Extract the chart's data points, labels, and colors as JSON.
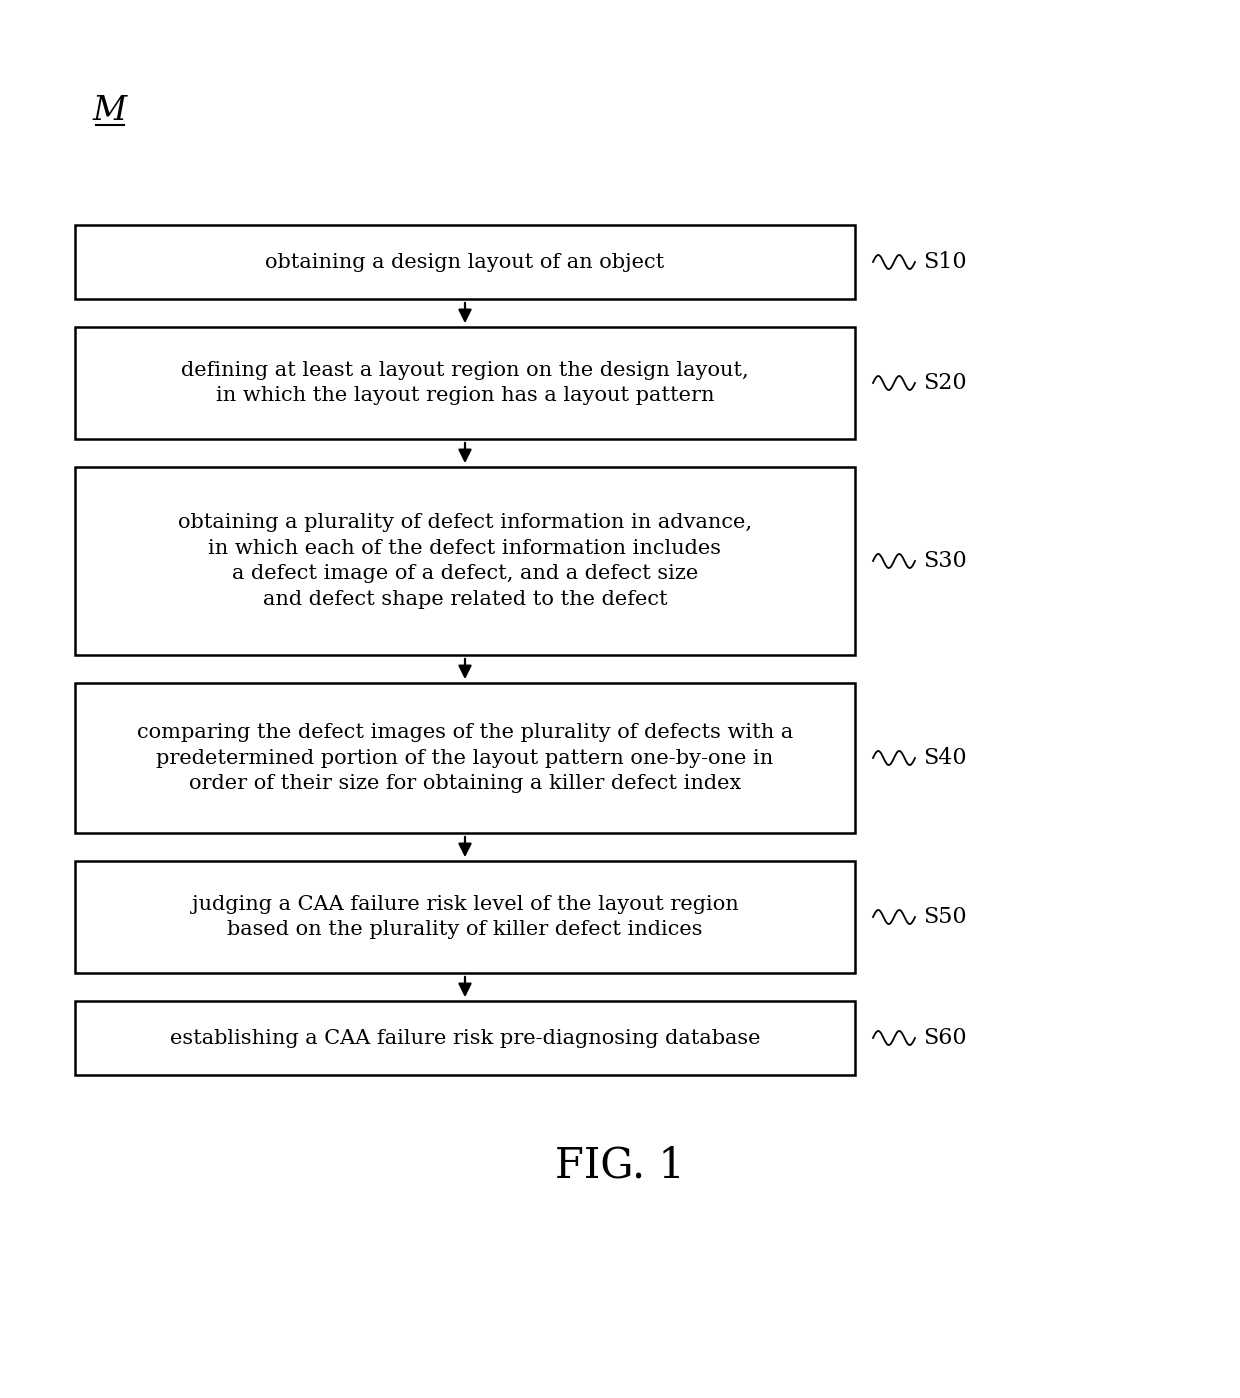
{
  "title": "FIG. 1",
  "label_M": "M",
  "background_color": "#ffffff",
  "box_fill": "#ffffff",
  "box_edge": "#000000",
  "text_color": "#000000",
  "arrow_color": "#000000",
  "steps": [
    {
      "id": "S10",
      "label": "S10",
      "text": "obtaining a design layout of an object",
      "lines": 1
    },
    {
      "id": "S20",
      "label": "S20",
      "text": "defining at least a layout region on the design layout,\nin which the layout region has a layout pattern",
      "lines": 2
    },
    {
      "id": "S30",
      "label": "S30",
      "text": "obtaining a plurality of defect information in advance,\nin which each of the defect information includes\na defect image of a defect, and a defect size\nand defect shape related to the defect",
      "lines": 4
    },
    {
      "id": "S40",
      "label": "S40",
      "text": "comparing the defect images of the plurality of defects with a\npredetermined portion of the layout pattern one-by-one in\norder of their size for obtaining a killer defect index",
      "lines": 3
    },
    {
      "id": "S50",
      "label": "S50",
      "text": "judging a CAA failure risk level of the layout region\nbased on the plurality of killer defect indices",
      "lines": 2
    },
    {
      "id": "S60",
      "label": "S60",
      "text": "establishing a CAA failure risk pre-diagnosing database",
      "lines": 1
    }
  ],
  "fig_width": 12.4,
  "fig_height": 13.98,
  "dpi": 100
}
